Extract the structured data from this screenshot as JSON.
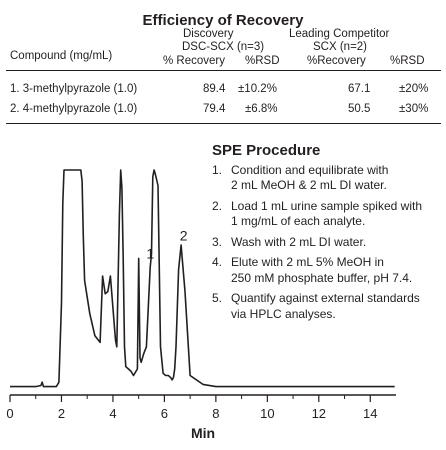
{
  "table": {
    "title": "Efficiency of Recovery",
    "headers": {
      "compound": "Compound (mg/mL)",
      "group1_line1": "Discovery",
      "group1_line2": "DSC-SCX (n=3)",
      "group2_line1": "Leading Competitor",
      "group2_line2": "SCX (n=2)",
      "col_recovery1": "% Recovery",
      "col_rsd1": "%RSD",
      "col_recovery2": "%Recovery",
      "col_rsd2": "%RSD"
    },
    "rows": [
      {
        "compound": "1. 3-methylpyrazole (1.0)",
        "rec1": "89.4",
        "rsd1": "±10.2%",
        "rec2": "67.1",
        "rsd2": "±20%"
      },
      {
        "compound": "2. 4-methylpyrazole (1.0)",
        "rec1": "79.4",
        "rsd1": "±6.8%",
        "rec2": "50.5",
        "rsd2": "±30%"
      }
    ]
  },
  "procedure": {
    "title": "SPE Procedure",
    "steps": [
      {
        "num": "1.",
        "lines": [
          "Condition and equilibrate with",
          "2 mL MeOH & 2 mL DI water."
        ]
      },
      {
        "num": "2.",
        "lines": [
          "Load 1 mL urine sample spiked with",
          "1 mg/mL of each analyte."
        ]
      },
      {
        "num": "3.",
        "lines": [
          "Wash with 2 mL DI water."
        ]
      },
      {
        "num": "4.",
        "lines": [
          "Elute with 2 mL 5% MeOH in",
          "250 mM phosphate buffer, pH 7.4."
        ]
      },
      {
        "num": "5.",
        "lines": [
          "Quantify against external standards",
          "via HPLC analyses."
        ]
      }
    ]
  },
  "chart_data": {
    "type": "line",
    "title": "",
    "xlabel": "Min",
    "ylabel": "",
    "xlim": [
      0,
      15
    ],
    "ylim": [
      0,
      1
    ],
    "xticks": [
      0,
      2,
      4,
      6,
      8,
      10,
      12,
      14
    ],
    "grid": false,
    "series": [
      {
        "name": "",
        "x": [
          0.0,
          1.0,
          1.2,
          1.25,
          1.3,
          1.8,
          1.9,
          2.0,
          2.05,
          2.1,
          2.75,
          2.8,
          2.85,
          2.9,
          3.1,
          3.3,
          3.5,
          3.6,
          3.7,
          3.8,
          3.9,
          4.1,
          4.15,
          4.2,
          4.25,
          4.3,
          4.35,
          4.4,
          4.45,
          4.5,
          4.7,
          4.8,
          4.9,
          4.95,
          5.0,
          5.05,
          5.1,
          5.15,
          5.2,
          5.3,
          5.45,
          5.5,
          5.55,
          5.6,
          5.65,
          5.75,
          5.85,
          5.95,
          6.05,
          6.15,
          6.25,
          6.3,
          6.35,
          6.4,
          6.45,
          6.55,
          6.65,
          6.8,
          7.0,
          7.5,
          8.0,
          9.0,
          10.0,
          11.0,
          12.0,
          13.0,
          14.0,
          14.95
        ],
        "y": [
          0.02,
          0.02,
          0.025,
          0.04,
          0.02,
          0.02,
          0.04,
          0.4,
          0.85,
          1.0,
          1.0,
          0.95,
          0.7,
          0.5,
          0.35,
          0.25,
          0.22,
          0.52,
          0.44,
          0.45,
          0.52,
          0.23,
          0.2,
          0.5,
          0.8,
          1.0,
          0.92,
          0.6,
          0.2,
          0.11,
          0.09,
          0.07,
          0.09,
          0.1,
          0.6,
          0.15,
          0.13,
          0.15,
          0.17,
          0.2,
          0.56,
          0.62,
          0.97,
          1.0,
          0.98,
          0.93,
          0.2,
          0.08,
          0.07,
          0.07,
          0.06,
          0.05,
          0.06,
          0.1,
          0.2,
          0.55,
          0.66,
          0.45,
          0.07,
          0.03,
          0.02,
          0.02,
          0.02,
          0.02,
          0.02,
          0.02,
          0.02,
          0.02
        ]
      }
    ],
    "annotations": [
      {
        "text": "1",
        "x": 5.45,
        "y": 0.6
      },
      {
        "text": "2",
        "x": 6.75,
        "y": 0.68
      }
    ]
  }
}
